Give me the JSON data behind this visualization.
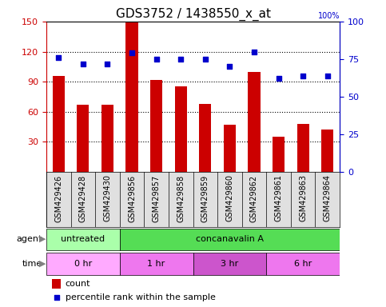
{
  "title": "GDS3752 / 1438550_x_at",
  "samples": [
    "GSM429426",
    "GSM429428",
    "GSM429430",
    "GSM429856",
    "GSM429857",
    "GSM429858",
    "GSM429859",
    "GSM429860",
    "GSM429862",
    "GSM429861",
    "GSM429863",
    "GSM429864"
  ],
  "counts": [
    96,
    67,
    67,
    149,
    92,
    85,
    68,
    47,
    100,
    35,
    48,
    42
  ],
  "percentile_ranks": [
    76,
    72,
    72,
    79,
    75,
    75,
    75,
    70,
    80,
    62,
    64,
    64
  ],
  "left_ylim": [
    0,
    150
  ],
  "left_yticks": [
    30,
    60,
    90,
    120,
    150
  ],
  "right_ylim": [
    0,
    100
  ],
  "right_yticks": [
    0,
    25,
    50,
    75,
    100
  ],
  "bar_color": "#cc0000",
  "dot_color": "#0000cc",
  "agent_labels": [
    {
      "label": "untreated",
      "start": 0,
      "end": 3,
      "color": "#aaffaa"
    },
    {
      "label": "concanavalin A",
      "start": 3,
      "end": 12,
      "color": "#55dd55"
    }
  ],
  "time_labels": [
    {
      "label": "0 hr",
      "start": 0,
      "end": 3,
      "color": "#ffaaff"
    },
    {
      "label": "1 hr",
      "start": 3,
      "end": 6,
      "color": "#ee77ee"
    },
    {
      "label": "3 hr",
      "start": 6,
      "end": 9,
      "color": "#cc55cc"
    },
    {
      "label": "6 hr",
      "start": 9,
      "end": 12,
      "color": "#ee77ee"
    }
  ],
  "bar_width": 0.5,
  "tick_label_fontsize": 7,
  "title_fontsize": 11,
  "annotation_fontsize": 8,
  "legend_fontsize": 8,
  "tickbox_gray": "#e0e0e0"
}
